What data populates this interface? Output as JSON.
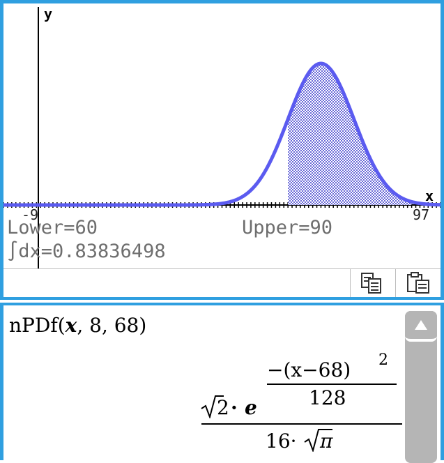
{
  "graph": {
    "y_axis_label": "y",
    "x_axis_label": "x",
    "x_min_label": "-9",
    "x_max_label": "97",
    "lower_text": "Lower=60",
    "upper_text": "Upper=90",
    "integral_text": "∫dx=0.83836498",
    "curve_color": "#5b5bf0",
    "shade_color": "#6a6ad8",
    "axis_color": "#000000"
  },
  "chart_data": {
    "type": "area",
    "function": "normal pdf",
    "sigma": 8,
    "mu": 68,
    "x_range": [
      -9,
      97
    ],
    "shaded_interval": [
      60,
      90
    ],
    "integral": 0.83836498
  },
  "toolbar": {
    "buttons": [
      {
        "icon": "copy-icon"
      },
      {
        "icon": "paste-icon"
      }
    ]
  },
  "main": {
    "entry_fn": "nPDf",
    "entry_open": "(",
    "entry_var": "x",
    "entry_args": ", 8, 68)",
    "result": {
      "exp_numerator": "−(x−68)",
      "exp_power": "2",
      "exp_denominator": "128",
      "sqrt_radicand": "2",
      "dot1": "·",
      "e_symbol": "e",
      "denominator_coef": "16·",
      "denominator_pi": "π"
    }
  },
  "scroll": {
    "up_icon": "triangle-up-icon"
  }
}
